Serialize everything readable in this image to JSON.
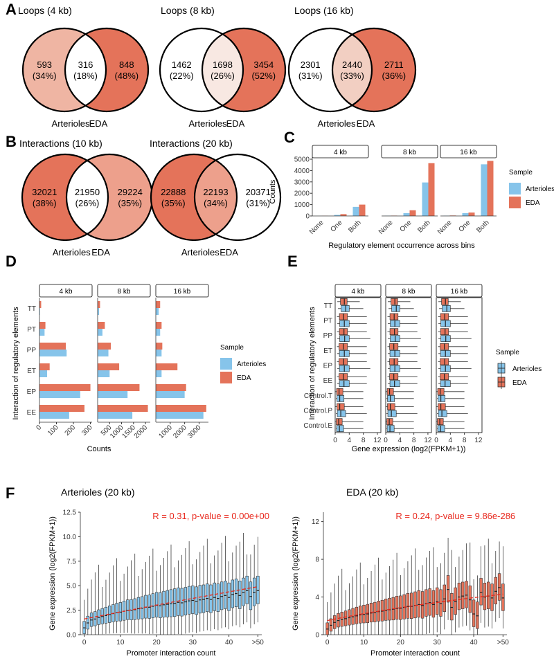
{
  "colors": {
    "arterioles": "#86c4ea",
    "eda": "#e4735a",
    "venn_light_salmon": "#efb5a3",
    "venn_overlap_light": "#f8e8e2",
    "venn_overlap_mid": "#f2cfc2",
    "venn_overlap_dark": "#eda08c",
    "trend": "#e8261b"
  },
  "panels": {
    "A": {
      "label": "A",
      "venns": [
        {
          "title": "Loops (4 kb)",
          "left": "593\n(34%)",
          "mid": "316\n(18%)",
          "right": "848\n(48%)",
          "left_name": "Arterioles",
          "right_name": "EDA"
        },
        {
          "title": "Loops (8 kb)",
          "left": "1462\n(22%)",
          "mid": "1698\n(26%)",
          "right": "3454\n(52%)",
          "left_name": "Arterioles",
          "right_name": "EDA"
        },
        {
          "title": "Loops (16 kb)",
          "left": "2301\n(31%)",
          "mid": "2440\n(33%)",
          "right": "2711\n(36%)",
          "left_name": "Arterioles",
          "right_name": "EDA"
        }
      ]
    },
    "B": {
      "label": "B",
      "venns": [
        {
          "title": "Interactions (10 kb)",
          "left": "32021\n(38%)",
          "mid": "21950\n(26%)",
          "right": "29224\n(35%)",
          "left_name": "Arterioles",
          "right_name": "EDA"
        },
        {
          "title": "Interactions (20 kb)",
          "left": "22888\n(35%)",
          "mid": "22193\n(34%)",
          "right": "20371\n(31%)",
          "left_name": "Arterioles",
          "right_name": "EDA"
        }
      ]
    },
    "C": {
      "label": "C"
    },
    "D": {
      "label": "D"
    },
    "E": {
      "label": "E"
    },
    "F": {
      "label": "F"
    }
  },
  "chart_data": [
    {
      "panel": "C",
      "type": "bar",
      "facets": [
        "4 kb",
        "8 kb",
        "16 kb"
      ],
      "categories": [
        "None",
        "One",
        "Both"
      ],
      "series": [
        {
          "name": "Arterioles",
          "values_by_facet": [
            [
              5,
              90,
              800
            ],
            [
              15,
              250,
              2950
            ],
            [
              20,
              250,
              4550
            ]
          ]
        },
        {
          "name": "EDA",
          "values_by_facet": [
            [
              10,
              160,
              1000
            ],
            [
              30,
              500,
              4650
            ],
            [
              40,
              300,
              4850
            ]
          ]
        }
      ],
      "xlabel": "Regulatory element occurrence across bins",
      "ylabel": "Counts",
      "yticks": [
        0,
        1000,
        2000,
        3000,
        4000,
        5000
      ],
      "ylim": [
        0,
        5000
      ],
      "legend_title": "Sample",
      "legend_position": "right"
    },
    {
      "panel": "D",
      "type": "bar",
      "orientation": "horizontal",
      "facets": [
        "4 kb",
        "8 kb",
        "16 kb"
      ],
      "categories": [
        "TT",
        "PT",
        "PP",
        "ET",
        "EP",
        "EE"
      ],
      "series": [
        {
          "name": "Arterioles",
          "values_by_facet": [
            [
              3,
              30,
              160,
              45,
              240,
              175
            ],
            [
              60,
              200,
              450,
              500,
              1250,
              1450
            ],
            [
              200,
              300,
              400,
              400,
              2000,
              3300
            ]
          ]
        },
        {
          "name": "EDA",
          "values_by_facet": [
            [
              10,
              35,
              155,
              60,
              300,
              265
            ],
            [
              100,
              300,
              550,
              900,
              1750,
              2100
            ],
            [
              300,
              400,
              450,
              1500,
              2100,
              3500
            ]
          ]
        }
      ],
      "xticks_by_facet": [
        [
          0,
          100,
          200,
          300
        ],
        [
          500,
          1000,
          1500,
          2000
        ],
        [
          1000,
          2000,
          3000
        ]
      ],
      "xlim_by_facet": [
        [
          0,
          310
        ],
        [
          0,
          2200
        ],
        [
          0,
          3650
        ]
      ],
      "xlabel": "Counts",
      "ylabel": "Interaction of regulatory elements",
      "legend_title": "Sample",
      "legend_position": "right"
    },
    {
      "panel": "E",
      "type": "box",
      "orientation": "horizontal",
      "facets": [
        "4 kb",
        "8 kb",
        "16 kb"
      ],
      "categories": [
        "TT",
        "PT",
        "PP",
        "ET",
        "EP",
        "EE",
        "Control.T",
        "Control.P",
        "Control.E"
      ],
      "series": [
        {
          "name": "Arterioles",
          "box_by_category": [
            [
              0.8,
              1.7,
              3,
              4,
              8
            ],
            [
              0.6,
              1.3,
              2.6,
              4,
              9
            ],
            [
              0.6,
              1.3,
              2.7,
              4,
              10
            ],
            [
              0.6,
              1.2,
              2.6,
              4,
              9
            ],
            [
              0.6,
              1.2,
              2.6,
              4,
              10
            ],
            [
              0.6,
              1.2,
              2.5,
              4,
              9
            ],
            [
              0.2,
              0.5,
              1.3,
              2.5,
              8
            ],
            [
              0.2,
              0.6,
              1.6,
              3,
              9
            ],
            [
              0.2,
              0.4,
              1.2,
              2.4,
              8
            ]
          ]
        },
        {
          "name": "EDA",
          "box_by_category": [
            [
              0.6,
              1.5,
              2.6,
              3.4,
              7
            ],
            [
              0.5,
              1.2,
              2.4,
              3.5,
              9
            ],
            [
              0.5,
              1.2,
              2.5,
              3.5,
              9
            ],
            [
              0.5,
              1.1,
              2.3,
              3.5,
              9
            ],
            [
              0.5,
              1.1,
              2.4,
              3.5,
              9
            ],
            [
              0.5,
              1.1,
              2.3,
              3.5,
              9
            ],
            [
              0.1,
              0.4,
              1.1,
              2.2,
              8
            ],
            [
              0.1,
              0.5,
              1.3,
              2.6,
              8
            ],
            [
              0.1,
              0.3,
              1.0,
              2.0,
              8
            ]
          ]
        }
      ],
      "xticks": [
        0,
        4,
        8,
        12
      ],
      "xlim": [
        0,
        13
      ],
      "xlabel": "Gene expression (log2(FPKM+1))",
      "ylabel": "Interaction of regulatory elements",
      "legend_title": "Sample",
      "legend_position": "right"
    },
    {
      "panel": "F-left",
      "type": "box",
      "title": "Arterioles (20 kb)",
      "annotation": "R = 0.31, p-value = 0.00e+00",
      "medians": [
        0.7,
        1.2,
        1.5,
        1.6,
        1.75,
        1.85,
        1.95,
        2.05,
        2.15,
        2.25,
        2.3,
        2.4,
        2.5,
        2.5,
        2.55,
        2.65,
        2.7,
        2.8,
        2.8,
        2.9,
        3.0,
        2.95,
        3.05,
        3.1,
        3.15,
        3.2,
        3.3,
        3.25,
        3.35,
        3.45,
        3.5,
        3.4,
        3.55,
        3.6,
        3.7,
        3.6,
        3.8,
        3.7,
        3.9,
        4.0,
        3.8,
        4.1,
        4.2,
        4.0,
        4.3,
        4.5,
        3.9,
        4.3,
        4.5
      ],
      "xticks": [
        "0",
        "10",
        "20",
        "30",
        "40",
        ">50"
      ],
      "yticks": [
        0.0,
        2.5,
        5.0,
        7.5,
        10.0,
        12.5
      ],
      "ylim": [
        0,
        12.5
      ],
      "xlabel": "Promoter interaction count",
      "ylabel": "Gene expression (log2(FPKM+1))"
    },
    {
      "panel": "F-right",
      "type": "box",
      "title": "EDA (20 kb)",
      "annotation": "R = 0.24, p-value = 9.86e-286",
      "medians": [
        0.6,
        1.0,
        1.3,
        1.5,
        1.6,
        1.7,
        1.8,
        1.9,
        2.0,
        2.1,
        2.15,
        2.2,
        2.3,
        2.35,
        2.45,
        2.5,
        2.6,
        2.65,
        2.7,
        2.8,
        2.8,
        2.9,
        3.0,
        3.0,
        3.1,
        3.2,
        3.1,
        3.3,
        3.4,
        3.2,
        3.5,
        3.3,
        3.8,
        4.8,
        2.9,
        3.5,
        4.0,
        4.1,
        4.2,
        3.7,
        2.2,
        2.0,
        4.5,
        4.0,
        4.1,
        3.9,
        4.6,
        5.0,
        3.9
      ],
      "xticks": [
        "0",
        "10",
        "20",
        "30",
        "40",
        ">50"
      ],
      "yticks": [
        0,
        4,
        8,
        12
      ],
      "ylim": [
        0,
        13
      ],
      "xlabel": "Promoter interaction count",
      "ylabel": "Gene expression (log2(FPKM+1))"
    }
  ]
}
